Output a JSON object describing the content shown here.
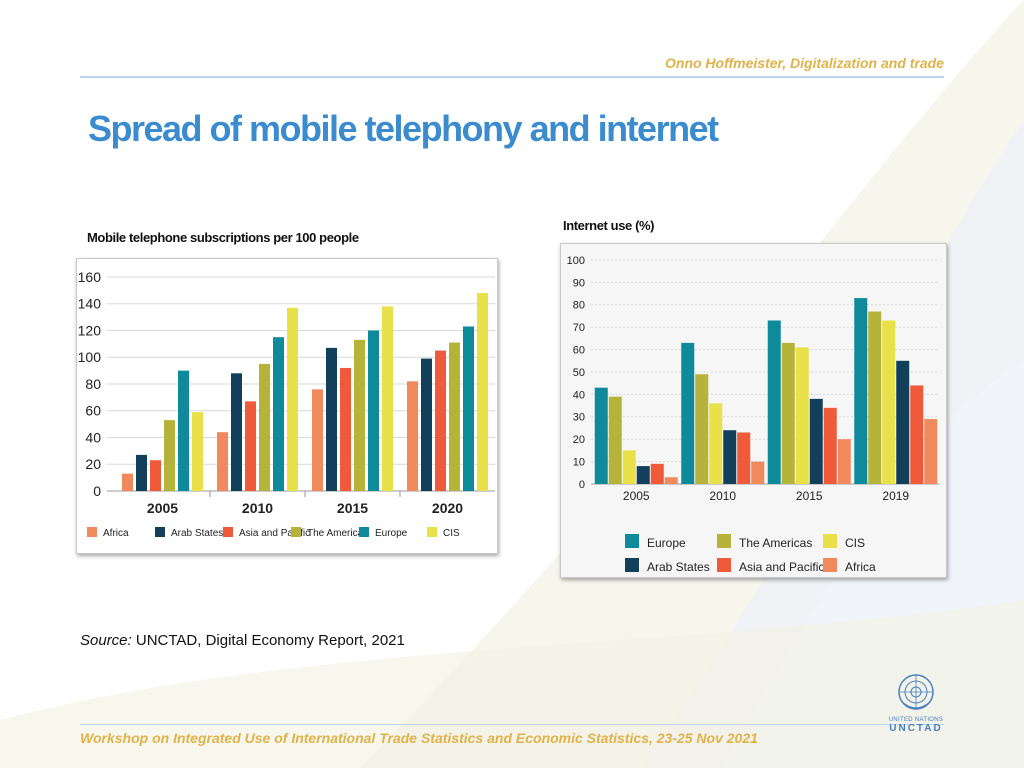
{
  "header": {
    "author": "Onno Hoffmeister, Digitalization and trade",
    "title": "Spread of mobile telephony and internet"
  },
  "source": {
    "label": "Source:",
    "text": "UNCTAD, Digital Economy Report, 2021"
  },
  "footer": {
    "text": "Workshop on Integrated Use of International Trade Statistics and Economic Statistics, 23-25 Nov 2021",
    "logo_line1": "UNITED NATIONS",
    "logo_line2": "UNCTAD"
  },
  "colors": {
    "title": "#3a8ccf",
    "accent": "#e0b34a",
    "Africa": "#f08a5d",
    "Arab States": "#123f5a",
    "Asia and Pacific": "#ee5a3a",
    "The Americas": "#b6b33a",
    "Europe": "#0f8a9a",
    "CIS": "#e8e14a"
  },
  "chart_data": [
    {
      "type": "bar",
      "title": "Mobile telephone subscriptions per 100 people",
      "xlabel": "",
      "ylabel": "",
      "ylim": [
        0,
        160
      ],
      "yticks": [
        0,
        20,
        40,
        60,
        80,
        100,
        120,
        140,
        160
      ],
      "grid": true,
      "legend_position": "bottom",
      "categories": [
        "2005",
        "2010",
        "2015",
        "2020"
      ],
      "series": [
        {
          "name": "Africa",
          "values": [
            13,
            44,
            76,
            82
          ]
        },
        {
          "name": "Arab States",
          "values": [
            27,
            88,
            107,
            99
          ]
        },
        {
          "name": "Asia and Pacific",
          "values": [
            23,
            67,
            92,
            105
          ]
        },
        {
          "name": "The Americas",
          "values": [
            53,
            95,
            113,
            111
          ]
        },
        {
          "name": "Europe",
          "values": [
            90,
            115,
            120,
            123
          ]
        },
        {
          "name": "CIS",
          "values": [
            59,
            137,
            138,
            148
          ]
        }
      ]
    },
    {
      "type": "bar",
      "title": "Internet use (%)",
      "xlabel": "",
      "ylabel": "",
      "ylim": [
        0,
        100
      ],
      "yticks": [
        0,
        10,
        20,
        30,
        40,
        50,
        60,
        70,
        80,
        90,
        100
      ],
      "grid": true,
      "legend_position": "bottom",
      "categories": [
        "2005",
        "2010",
        "2015",
        "2019"
      ],
      "series": [
        {
          "name": "Europe",
          "values": [
            43,
            63,
            73,
            83
          ]
        },
        {
          "name": "The Americas",
          "values": [
            39,
            49,
            63,
            77
          ]
        },
        {
          "name": "CIS",
          "values": [
            15,
            36,
            61,
            73
          ]
        },
        {
          "name": "Arab States",
          "values": [
            8,
            24,
            38,
            55
          ]
        },
        {
          "name": "Asia and Pacific",
          "values": [
            9,
            23,
            34,
            44
          ]
        },
        {
          "name": "Africa",
          "values": [
            3,
            10,
            20,
            29
          ]
        }
      ],
      "legend_order": [
        "Europe",
        "The Americas",
        "CIS",
        "Arab States",
        "Asia and Pacific",
        "Africa"
      ]
    }
  ]
}
